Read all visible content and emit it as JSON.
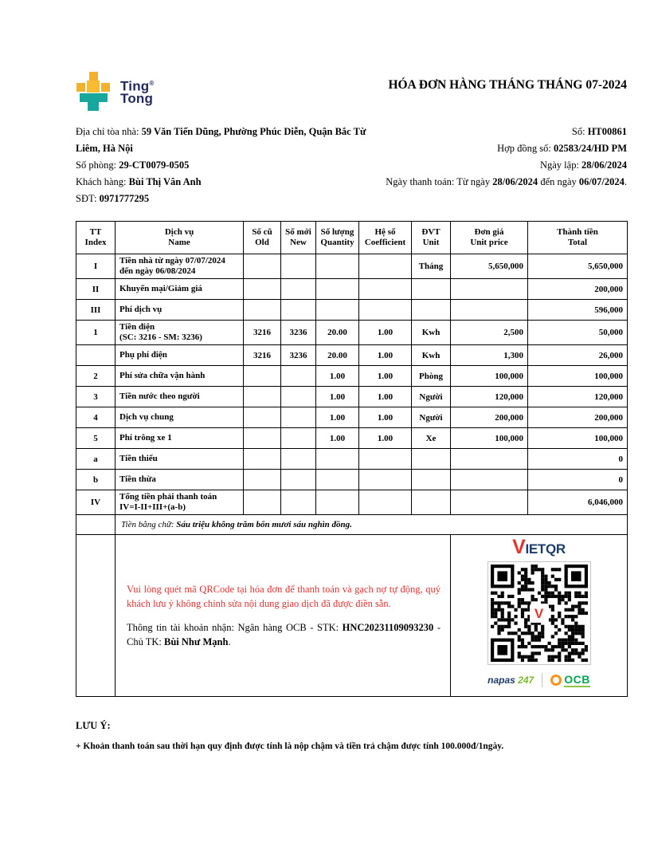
{
  "logo": {
    "line1": "Ting",
    "line2": "Tong",
    "reg": "®"
  },
  "title": "HÓA ĐƠN HÀNG THÁNG THÁNG 07-2024",
  "info": {
    "left_lines": [
      {
        "segments": [
          {
            "t": "Địa chỉ tòa nhà: "
          },
          {
            "t": "59 Văn Tiến Dũng, Phường Phúc Diễn, Quận Bắc Từ Liêm, Hà Nội",
            "b": true
          }
        ]
      },
      {
        "segments": [
          {
            "t": "Số phòng: "
          },
          {
            "t": "29-CT0079-0505",
            "b": true
          }
        ]
      },
      {
        "segments": [
          {
            "t": "Khách hàng: "
          },
          {
            "t": "Bùi Thị Vân Anh",
            "b": true
          }
        ]
      },
      {
        "segments": [
          {
            "t": "SĐT: "
          },
          {
            "t": "0971777295",
            "b": true
          }
        ]
      }
    ],
    "right_lines": [
      {
        "segments": [
          {
            "t": "Số: "
          },
          {
            "t": "HT00861",
            "b": true
          }
        ]
      },
      {
        "segments": [
          {
            "t": "Hợp đồng số: "
          },
          {
            "t": "02583/24/HD PM",
            "b": true
          }
        ]
      },
      {
        "segments": [
          {
            "t": "Ngày lập: "
          },
          {
            "t": "28/06/2024",
            "b": true
          }
        ]
      },
      {
        "segments": [
          {
            "t": "Ngày thanh toán: Từ ngày "
          },
          {
            "t": "28/06/2024",
            "b": true
          },
          {
            "t": " đến ngày "
          },
          {
            "t": "06/07/2024",
            "b": true
          },
          {
            "t": "."
          }
        ]
      }
    ]
  },
  "table": {
    "headers": [
      {
        "vi": "TT",
        "en": "Index"
      },
      {
        "vi": "Dịch vụ",
        "en": "Name"
      },
      {
        "vi": "Số cũ",
        "en": "Old"
      },
      {
        "vi": "Số mới",
        "en": "New"
      },
      {
        "vi": "Số lượng",
        "en": "Quantity"
      },
      {
        "vi": "Hệ số",
        "en": "Coefficient"
      },
      {
        "vi": "ĐVT",
        "en": "Unit"
      },
      {
        "vi": "Đơn giá",
        "en": "Unit price"
      },
      {
        "vi": "Thành tiền",
        "en": "Total"
      }
    ],
    "rows": [
      {
        "tt": "I",
        "name": "Tiền nhà từ ngày 07/07/2024",
        "name2": "đến ngày 06/08/2024",
        "old": "",
        "new": "",
        "qty": "",
        "coef": "",
        "unit": "Tháng",
        "price": "5,650,000",
        "total": "5,650,000"
      },
      {
        "tt": "II",
        "name": "Khuyến mại/Giảm giá",
        "old": "",
        "new": "",
        "qty": "",
        "coef": "",
        "unit": "",
        "price": "",
        "total": "200,000"
      },
      {
        "tt": "III",
        "name": "Phí dịch vụ",
        "old": "",
        "new": "",
        "qty": "",
        "coef": "",
        "unit": "",
        "price": "",
        "total": "596,000"
      },
      {
        "tt": "1",
        "name": "Tiền điện",
        "name2": "(SC: 3216 - SM: 3236)",
        "old": "3216",
        "new": "3236",
        "qty": "20.00",
        "coef": "1.00",
        "unit": "Kwh",
        "price": "2,500",
        "total": "50,000"
      },
      {
        "tt": "",
        "name": "Phụ phí điện",
        "old": "3216",
        "new": "3236",
        "qty": "20.00",
        "coef": "1.00",
        "unit": "Kwh",
        "price": "1,300",
        "total": "26,000"
      },
      {
        "tt": "2",
        "name": "Phí sửa chữa vận hành",
        "old": "",
        "new": "",
        "qty": "1.00",
        "coef": "1.00",
        "unit": "Phòng",
        "price": "100,000",
        "total": "100,000"
      },
      {
        "tt": "3",
        "name": "Tiền nước theo người",
        "old": "",
        "new": "",
        "qty": "1.00",
        "coef": "1.00",
        "unit": "Người",
        "price": "120,000",
        "total": "120,000"
      },
      {
        "tt": "4",
        "name": "Dịch vụ chung",
        "old": "",
        "new": "",
        "qty": "1.00",
        "coef": "1.00",
        "unit": "Người",
        "price": "200,000",
        "total": "200,000"
      },
      {
        "tt": "5",
        "name": "Phí trông xe 1",
        "old": "",
        "new": "",
        "qty": "1.00",
        "coef": "1.00",
        "unit": "Xe",
        "price": "100,000",
        "total": "100,000"
      },
      {
        "tt": "a",
        "name": "Tiền thiếu",
        "old": "",
        "new": "",
        "qty": "",
        "coef": "",
        "unit": "",
        "price": "",
        "total": "0"
      },
      {
        "tt": "b",
        "name": "Tiền thừa",
        "old": "",
        "new": "",
        "qty": "",
        "coef": "",
        "unit": "",
        "price": "",
        "total": "0"
      },
      {
        "tt": "IV",
        "name": "Tổng tiền phải thanh toán",
        "name2": "IV=I-II+III+(a-b)",
        "old": "",
        "new": "",
        "qty": "",
        "coef": "",
        "unit": "",
        "price": "",
        "total": "6,046,000"
      }
    ],
    "amount_words_label": "Tiền bằng chữ: ",
    "amount_words": "Sáu triệu không trăm bốn mươi sáu nghìn đồng."
  },
  "qr_text": {
    "red_note": "Vui lòng quét mã QRCode tại hóa đơn để thanh toán và gạch nợ tự động, quý khách lưu ý không chỉnh sửa nội dung giao dịch đã được điền sẵn.",
    "account_segments": [
      {
        "t": "Thông tin tài khoản nhận: Ngân hàng OCB - STK: "
      },
      {
        "t": "HNC20231109093230",
        "b": true
      },
      {
        "t": " - Chủ TK: "
      },
      {
        "t": "Bùi Như Mạnh",
        "b": true
      },
      {
        "t": "."
      }
    ]
  },
  "qr_panel": {
    "vietqr_v": "V",
    "vietqr_iet": "IET",
    "vietqr_qr": "QR",
    "center_v": "V",
    "napas": "napas",
    "napas_247": "247",
    "ocb": "OCB"
  },
  "notes": {
    "title": "LƯU Ý:",
    "line": "+ Khoản thanh toán sau thời hạn quy định được tính là nộp chậm và tiền trả chậm được tính 100.000đ/1ngày."
  },
  "colors": {
    "logo_yellow": "#F2B02C",
    "logo_teal": "#18A79D",
    "logo_navy": "#232A5C",
    "warning_red": "#E03131",
    "vietqr_red": "#E3342F",
    "vietqr_navy": "#1B3C6D",
    "ocb_green": "#00A651",
    "ocb_orange": "#F7941D",
    "napas_green": "#7AB929",
    "border_black": "#000000"
  }
}
